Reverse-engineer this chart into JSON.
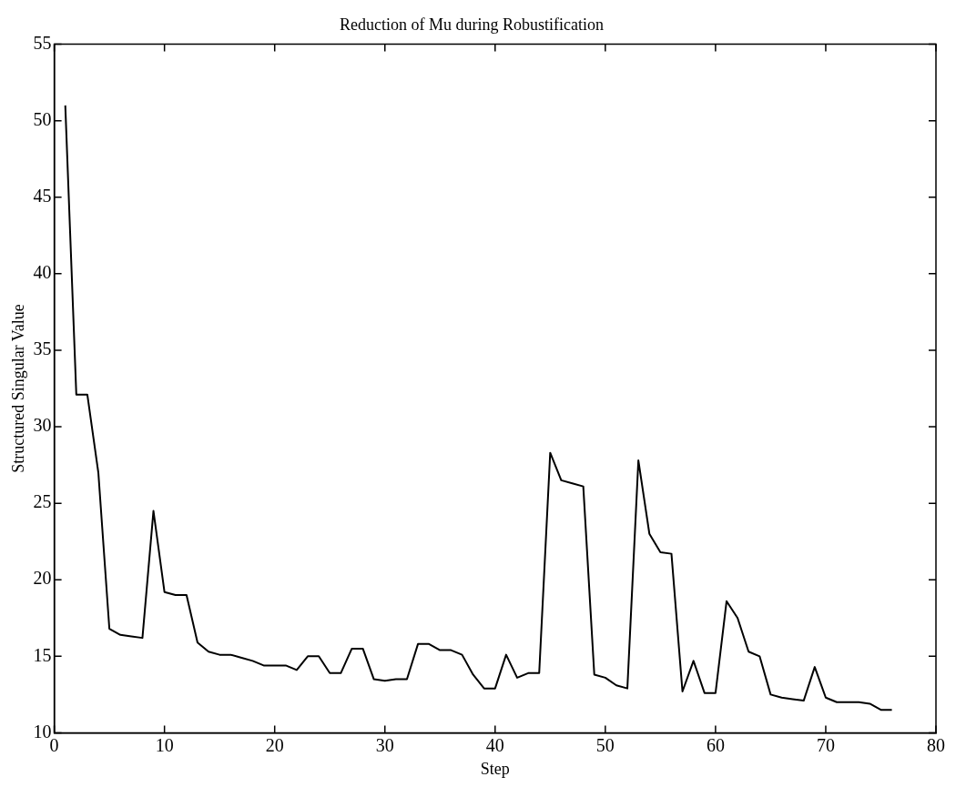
{
  "chart_data": {
    "type": "line",
    "title": "Reduction of Mu during Robustification",
    "xlabel": "Step",
    "ylabel": "Structured Singular Value",
    "x": [
      1,
      2,
      3,
      4,
      5,
      6,
      7,
      8,
      9,
      10,
      11,
      12,
      13,
      14,
      15,
      16,
      17,
      18,
      19,
      20,
      21,
      22,
      23,
      24,
      25,
      26,
      27,
      28,
      29,
      30,
      31,
      32,
      33,
      34,
      35,
      36,
      37,
      38,
      39,
      40,
      41,
      42,
      43,
      44,
      45,
      46,
      47,
      48,
      49,
      50,
      51,
      52,
      53,
      54,
      55,
      56,
      57,
      58,
      59,
      60,
      61,
      62,
      63,
      64,
      65,
      66,
      67,
      68,
      69,
      70,
      71,
      72,
      73,
      74,
      75,
      76
    ],
    "series": [
      {
        "color": "#000000",
        "values": [
          51,
          32.1,
          32.1,
          27,
          16.8,
          16.4,
          16.3,
          16.2,
          24.5,
          19.2,
          19,
          19,
          15.9,
          15.3,
          15.1,
          15.1,
          14.9,
          14.7,
          14.4,
          14.4,
          14.4,
          14.1,
          15,
          15,
          13.9,
          13.9,
          15.5,
          15.5,
          13.5,
          13.4,
          13.5,
          13.5,
          15.8,
          15.8,
          15.4,
          15.4,
          15.1,
          13.8,
          12.9,
          12.9,
          15.1,
          13.6,
          13.9,
          13.9,
          28.3,
          26.5,
          26.3,
          26.1,
          13.8,
          13.6,
          13.1,
          12.9,
          27.8,
          23,
          21.8,
          21.7,
          12.7,
          14.7,
          12.6,
          12.6,
          18.6,
          17.5,
          15.3,
          15,
          12.5,
          12.3,
          12.2,
          12.1,
          14.3,
          12.3,
          12,
          12,
          12,
          11.9,
          11.5,
          11.5
        ]
      }
    ],
    "xlim": [
      0,
      80
    ],
    "xticks": [
      0,
      10,
      20,
      30,
      40,
      50,
      60,
      70,
      80
    ],
    "ylim": [
      10,
      55
    ],
    "yticks": [
      10,
      15,
      20,
      25,
      30,
      35,
      40,
      45,
      50,
      55
    ],
    "marker": "none",
    "line_style": "solid"
  }
}
